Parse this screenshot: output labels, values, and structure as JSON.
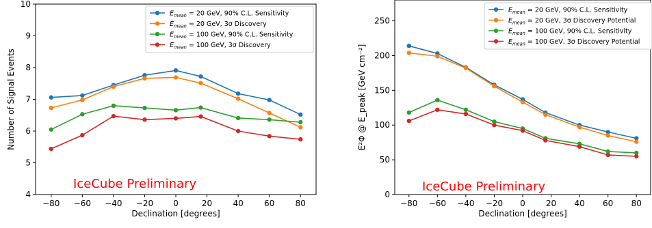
{
  "colors": {
    "blue": "#1f77b4",
    "orange": "#ff7f0e",
    "green": "#2ca02c",
    "red": "#d62728",
    "watermark": "#ff0000"
  },
  "chart_data": [
    {
      "type": "line",
      "xlabel": "Declination [degrees]",
      "ylabel": "Number of Signal Events",
      "xlim": [
        -90,
        90
      ],
      "ylim": [
        4,
        10
      ],
      "xticks": [
        -80,
        -60,
        -40,
        -20,
        0,
        20,
        40,
        60,
        80
      ],
      "yticks": [
        4,
        5,
        6,
        7,
        8,
        9,
        10
      ],
      "grid": false,
      "legend_position": "top-right",
      "annotation": "IceCube Preliminary",
      "x": [
        -80,
        -60,
        -40,
        -20,
        0,
        16,
        40,
        60,
        80
      ],
      "series": [
        {
          "name": "E_mean = 20 GeV, 90% C.L. Sensitivity",
          "color": "#1f77b4",
          "values": [
            7.06,
            7.12,
            7.45,
            7.76,
            7.91,
            7.72,
            7.18,
            6.98,
            6.52
          ]
        },
        {
          "name": "E_mean = 20 GeV, 3σ Discovery",
          "color": "#ff7f0e",
          "values": [
            6.73,
            6.98,
            7.4,
            7.66,
            7.69,
            7.51,
            7.02,
            6.57,
            6.12
          ]
        },
        {
          "name": "E_mean = 100 GeV, 90% C.L. Sensitivity",
          "color": "#2ca02c",
          "values": [
            6.05,
            6.53,
            6.8,
            6.73,
            6.66,
            6.74,
            6.41,
            6.36,
            6.28
          ]
        },
        {
          "name": "E_mean = 100 GeV, 3σ Discovery",
          "color": "#d62728",
          "values": [
            5.44,
            5.87,
            6.47,
            6.36,
            6.4,
            6.46,
            6.0,
            5.84,
            5.74
          ]
        }
      ]
    },
    {
      "type": "line",
      "xlabel": "Declination [degrees]",
      "ylabel": "E²Φ @ E_peak [GeV cm⁻²]",
      "xlim": [
        -90,
        90
      ],
      "ylim": [
        0,
        280
      ],
      "xticks": [
        -80,
        -60,
        -40,
        -20,
        0,
        20,
        40,
        60,
        80
      ],
      "yticks": [
        0,
        50,
        100,
        150,
        200,
        250
      ],
      "grid": false,
      "legend_position": "top-right",
      "annotation": "IceCube Preliminary",
      "x": [
        -80,
        -60,
        -40,
        -20,
        0,
        16,
        40,
        60,
        80
      ],
      "series": [
        {
          "name": "E_mean = 20 GeV, 90% C.L. Sensitivity",
          "color": "#1f77b4",
          "values": [
            214,
            203,
            183,
            158,
            137,
            118,
            100,
            90,
            81
          ]
        },
        {
          "name": "E_mean = 20 GeV, 3σ Discovery Potential",
          "color": "#ff7f0e",
          "values": [
            204,
            199,
            182,
            156,
            133,
            115,
            97,
            85,
            76
          ]
        },
        {
          "name": "E_mean = 100 GeV, 90% C.L. Sensitivity",
          "color": "#2ca02c",
          "values": [
            118,
            136,
            122,
            105,
            95,
            81,
            73,
            62,
            60
          ]
        },
        {
          "name": "E_mean = 100 GeV, 3σ Discovery Potential",
          "color": "#d62728",
          "values": [
            106,
            122,
            116,
            100,
            92,
            78,
            69,
            57,
            55
          ]
        }
      ]
    }
  ]
}
